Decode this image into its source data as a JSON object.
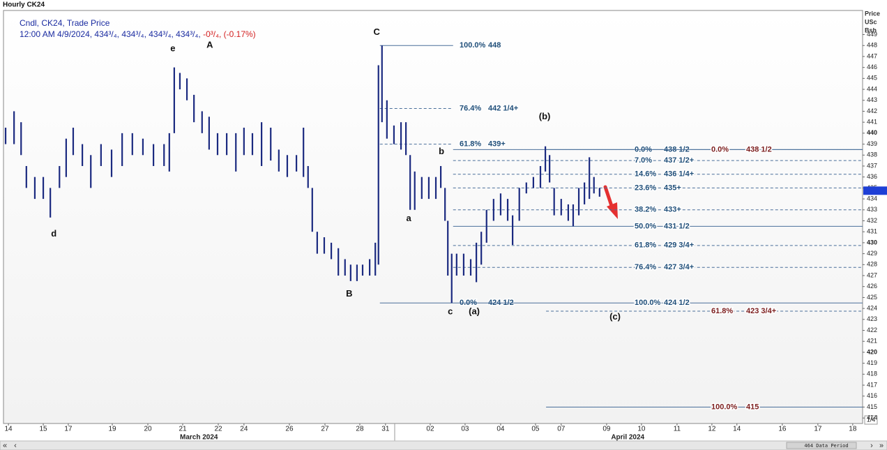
{
  "window_title": "Hourly CK24",
  "chart_data": {
    "type": "ohlc",
    "title": "Cndl, CK24, Trade Price",
    "subtitle": "12:00 AM 4/9/2024, 434³/₄, 434³/₄, 434³/₄, 434³/₄, ",
    "change_label": "-0³/₄, (-0.17%)",
    "y_axis_label": [
      "Price",
      "USc",
      "Bsh"
    ],
    "color": "#1b2a80",
    "x": [
      -0.08,
      0.16,
      0.36,
      0.51,
      0.75,
      0.99,
      1.19,
      1.45,
      1.64,
      1.84,
      2.1,
      2.34,
      2.63,
      2.93,
      3.23,
      3.52,
      3.82,
      4.12,
      4.42,
      4.57,
      4.71,
      4.87,
      5.07,
      5.27,
      5.5,
      5.7,
      5.94,
      6.2,
      6.46,
      6.69,
      6.93,
      7.19,
      7.45,
      7.68,
      7.92,
      8.18,
      8.38,
      8.51,
      8.63,
      8.77,
      8.97,
      9.17,
      9.37,
      9.56,
      9.72,
      9.9,
      10.06,
      10.26,
      10.42,
      10.51,
      10.61,
      10.75,
      10.95,
      11.15,
      11.29,
      11.41,
      11.54,
      11.74,
      11.94,
      12.14,
      12.28,
      12.4,
      12.48,
      12.59,
      12.73,
      12.93,
      13.13,
      13.29,
      13.43,
      13.58,
      13.78,
      13.98,
      14.18,
      14.32,
      14.51,
      14.71,
      14.91,
      15.11,
      15.25,
      15.37,
      15.5,
      15.7,
      15.9,
      16.04,
      16.2,
      16.36,
      16.5,
      16.63,
      16.79
    ],
    "high": [
      440.5,
      442,
      441,
      437,
      436,
      436,
      435,
      437,
      439.5,
      440.5,
      439,
      438,
      439,
      438.5,
      440,
      440,
      439.5,
      439,
      439,
      440,
      446,
      445.5,
      445,
      443.5,
      442,
      441.5,
      440,
      440,
      440,
      440.5,
      440,
      441,
      440.5,
      438.5,
      438,
      438,
      440.5,
      437,
      435,
      431,
      430.5,
      430,
      429.5,
      428.5,
      428,
      428,
      428,
      428.5,
      430,
      446.2,
      448,
      443,
      440.7,
      441,
      441,
      438,
      436.5,
      436,
      436,
      436,
      437,
      435,
      432,
      429,
      429,
      429,
      428.5,
      430,
      431,
      433,
      434,
      434.5,
      434,
      432.5,
      435,
      435.5,
      436,
      437,
      438.8,
      438,
      435,
      434,
      433.5,
      433.5,
      435,
      435.5,
      437.8,
      436,
      435
    ],
    "low": [
      439,
      439,
      438,
      435,
      434,
      434,
      432.3,
      435,
      436,
      438,
      437,
      435,
      437,
      436,
      437,
      438,
      438,
      437,
      437,
      436.5,
      440,
      444,
      443,
      441,
      440,
      438.5,
      438,
      438,
      436.5,
      438,
      438,
      437,
      437.5,
      436.5,
      436,
      436.5,
      436,
      435,
      431,
      429,
      429,
      428.5,
      427,
      427,
      426.5,
      426.5,
      427,
      427,
      427,
      428,
      441,
      439.5,
      439,
      438.5,
      438,
      433,
      433,
      434,
      434,
      434,
      435,
      432,
      427,
      424.5,
      427,
      427,
      427,
      426.4,
      428,
      430,
      432,
      432.5,
      432,
      429.8,
      432,
      434.5,
      435,
      435,
      436.5,
      435.5,
      432.5,
      432.5,
      432,
      431.5,
      432.5,
      433.5,
      434,
      434.5,
      434.2
    ],
    "xlim": [
      -0.14,
      24.26
    ],
    "ylim": [
      413.5,
      451.2
    ],
    "xticks": [
      {
        "value": 0,
        "label": "14"
      },
      {
        "value": 0.99,
        "label": "15"
      },
      {
        "value": 1.7,
        "label": "17"
      },
      {
        "value": 2.95,
        "label": "19"
      },
      {
        "value": 3.96,
        "label": "20"
      },
      {
        "value": 4.95,
        "label": "21"
      },
      {
        "value": 5.96,
        "label": "22"
      },
      {
        "value": 6.69,
        "label": "24"
      },
      {
        "value": 7.98,
        "label": "26"
      },
      {
        "value": 8.99,
        "label": "27"
      },
      {
        "value": 9.98,
        "label": "28"
      },
      {
        "value": 10.71,
        "label": "31"
      },
      {
        "value": 11.98,
        "label": "02"
      },
      {
        "value": 12.97,
        "label": "03"
      },
      {
        "value": 13.98,
        "label": "04"
      },
      {
        "value": 14.97,
        "label": "05"
      },
      {
        "value": 15.7,
        "label": "07"
      },
      {
        "value": 16.99,
        "label": "09"
      },
      {
        "value": 17.98,
        "label": "10"
      },
      {
        "value": 18.99,
        "label": "11"
      },
      {
        "value": 19.98,
        "label": "12"
      },
      {
        "value": 20.69,
        "label": "14"
      },
      {
        "value": 21.98,
        "label": "16"
      },
      {
        "value": 22.99,
        "label": "17"
      },
      {
        "value": 23.98,
        "label": "18"
      }
    ],
    "month_labels": [
      {
        "value": 5.41,
        "label": "March 2024"
      },
      {
        "value": 17.59,
        "label": "April 2024"
      }
    ],
    "yticks": [
      414,
      415,
      416,
      417,
      418,
      419,
      420,
      421,
      422,
      423,
      424,
      425,
      426,
      427,
      428,
      429,
      430,
      431,
      432,
      433,
      434,
      435,
      436,
      437,
      438,
      439,
      440,
      441,
      442,
      443,
      444,
      445,
      446,
      447,
      448,
      449
    ],
    "last_price": 434.75,
    "last_price_color": "#1e3fd6",
    "fib_groups": [
      {
        "color": "#1f4e79",
        "line_color": "#4a6f9a",
        "x_start": 10.55,
        "x_end": 12.63,
        "levels": [
          {
            "ratio": "100.0%",
            "price": 448,
            "dashed": false
          },
          {
            "ratio": "76.4%",
            "price": {
              "value": 442.25,
              "label": "442 1/4+"
            },
            "dashed": true
          },
          {
            "ratio": "61.8%",
            "price": {
              "value": 439,
              "label": "439+"
            },
            "dashed": true
          },
          {
            "ratio": "0.0%",
            "price": {
              "value": 424.5,
              "label": "424 1/2"
            },
            "dashed": false
          }
        ]
      },
      {
        "color": "#1f4e79",
        "line_color": "#4a6f9a",
        "x_start": 12.63,
        "levels": [
          {
            "ratio": "0.0%",
            "price": {
              "value": 438.5,
              "label": "438 1/2"
            },
            "dashed": false
          },
          {
            "ratio": "7.0%",
            "price": {
              "value": 437.5,
              "label": "437 1/2+"
            },
            "dashed": true
          },
          {
            "ratio": "14.6%",
            "price": {
              "value": 436.25,
              "label": "436 1/4+"
            },
            "dashed": true
          },
          {
            "ratio": "23.6%",
            "price": {
              "value": 435,
              "label": "435+"
            },
            "dashed": true
          },
          {
            "ratio": "38.2%",
            "price": {
              "value": 433,
              "label": "433+"
            },
            "dashed": true
          },
          {
            "ratio": "50.0%",
            "price": {
              "value": 431.5,
              "label": "431 1/2"
            },
            "dashed": false
          },
          {
            "ratio": "61.8%",
            "price": {
              "value": 429.75,
              "label": "429 3/4+"
            },
            "dashed": true
          },
          {
            "ratio": "76.4%",
            "price": {
              "value": 427.75,
              "label": "427 3/4+"
            },
            "dashed": true
          },
          {
            "ratio": "100.0%",
            "price": {
              "value": 424.5,
              "label": "424 1/2"
            },
            "dashed": false
          }
        ]
      },
      {
        "color": "#7b1c1c",
        "line_color": "#4a6f9a",
        "x_start": 15.27,
        "levels": [
          {
            "ratio": "0.0%",
            "price": {
              "value": 438.5,
              "label": "438 1/2"
            },
            "dashed": false
          },
          {
            "ratio": "61.8%",
            "price": {
              "value": 423.75,
              "label": "423 3/4+"
            },
            "dashed": true
          },
          {
            "ratio": "100.0%",
            "price": 415,
            "dashed": false
          }
        ]
      }
    ],
    "annotations": [
      {
        "text": "C",
        "x": 10.46,
        "y": 449.2
      },
      {
        "text": "A",
        "x": 5.72,
        "y": 448.0
      },
      {
        "text": "e",
        "x": 4.67,
        "y": 447.7
      },
      {
        "text": "d",
        "x": 1.29,
        "y": 430.8
      },
      {
        "text": "B",
        "x": 9.68,
        "y": 425.3
      },
      {
        "text": "a",
        "x": 11.37,
        "y": 432.2
      },
      {
        "text": "b",
        "x": 12.3,
        "y": 438.3
      },
      {
        "text": "c",
        "x": 12.55,
        "y": 423.7
      },
      {
        "text": "(a)",
        "x": 13.23,
        "y": 423.7
      },
      {
        "text": "(b)",
        "x": 15.23,
        "y": 441.5
      },
      {
        "text": "(c)",
        "x": 17.23,
        "y": 423.2
      }
    ]
  },
  "footer": {
    "page": "1/4",
    "data_period": "464 Data Period",
    "scroll": [
      "«",
      "‹",
      "›",
      "»"
    ]
  }
}
